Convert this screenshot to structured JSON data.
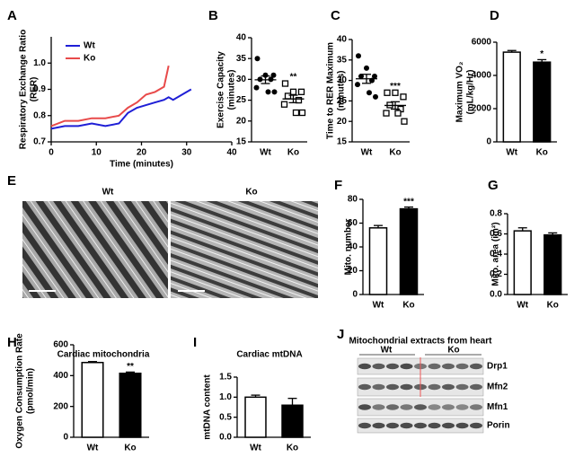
{
  "chart_data": [
    {
      "type": "line",
      "panel": "A",
      "ylabel": [
        "Respiratory Exchange Ratio",
        "(RER)"
      ],
      "xlabel": "Time (minutes)",
      "x": [
        0,
        3,
        6,
        9,
        12,
        15,
        17,
        19,
        21,
        23,
        25,
        26,
        27,
        29,
        31
      ],
      "series": [
        {
          "name": "Wt",
          "color": "#1f1fd6",
          "values": [
            0.75,
            0.76,
            0.76,
            0.77,
            0.76,
            0.77,
            0.81,
            0.83,
            0.84,
            0.85,
            0.86,
            0.87,
            0.86,
            0.88,
            0.9
          ]
        },
        {
          "name": "Ko",
          "color": "#e84a4a",
          "values": [
            0.76,
            0.78,
            0.78,
            0.79,
            0.79,
            0.8,
            0.83,
            0.85,
            0.88,
            0.89,
            0.91,
            0.99,
            null,
            null,
            null
          ]
        }
      ],
      "xlim": [
        0,
        40
      ],
      "xticks": [
        0,
        10,
        20,
        30,
        40
      ],
      "ylim": [
        0.7,
        1.1
      ],
      "yticks": [
        0.7,
        0.8,
        0.9,
        {
          "value": 1,
          "label": "1.0"
        }
      ],
      "legend": "top-left"
    },
    {
      "type": "dot",
      "panel": "B",
      "ylabel": [
        "Exercise Capacity",
        "(minutes)"
      ],
      "categories": [
        "Wt",
        "Ko"
      ],
      "values": [
        [
          35,
          31,
          31,
          30,
          30,
          28,
          27,
          27
        ],
        [
          29,
          27,
          27,
          26,
          25,
          24,
          22,
          22
        ]
      ],
      "means": [
        29.9,
        25.3
      ],
      "errors": [
        0.9,
        0.9
      ],
      "markers": [
        "circle",
        "square"
      ],
      "annotation": "**",
      "ylim": [
        15,
        40
      ],
      "yticks": [
        15,
        20,
        25,
        30,
        35,
        40
      ]
    },
    {
      "type": "dot",
      "panel": "C",
      "ylabel": [
        "Time to RER Maximum",
        "(minutes)"
      ],
      "categories": [
        "Wt",
        "Ko"
      ],
      "values": [
        [
          36,
          33,
          31,
          31,
          30,
          29,
          27,
          26
        ],
        [
          27,
          27,
          26,
          24,
          23,
          22,
          22,
          20
        ]
      ],
      "means": [
        30.4,
        23.9
      ],
      "errors": [
        1.1,
        0.9
      ],
      "markers": [
        "circle",
        "square"
      ],
      "annotation": "***",
      "ylim": [
        15,
        40
      ],
      "yticks": [
        15,
        20,
        25,
        30,
        35,
        40
      ]
    },
    {
      "type": "bar",
      "panel": "D",
      "ylabel": [
        "Maximum VO₂",
        "(mL/kg/Hr)"
      ],
      "categories": [
        "Wt",
        "Ko"
      ],
      "values": [
        5400,
        4800
      ],
      "errors": [
        100,
        150
      ],
      "colors": [
        "#ffffff",
        "#000000"
      ],
      "annotation": "*",
      "ylim": [
        0,
        6000
      ],
      "yticks": [
        0,
        2000,
        4000,
        6000
      ]
    },
    {
      "type": "bar",
      "panel": "F",
      "ylabel": [
        "Mito. number"
      ],
      "categories": [
        "Wt",
        "Ko"
      ],
      "values": [
        56,
        72
      ],
      "errors": [
        2,
        1.5
      ],
      "colors": [
        "#ffffff",
        "#000000"
      ],
      "annotation": "***",
      "ylim": [
        0,
        80
      ],
      "yticks": [
        0,
        20,
        40,
        60,
        80
      ]
    },
    {
      "type": "bar",
      "panel": "G",
      "ylabel": [
        "Mito. area (im²)"
      ],
      "categories": [
        "Wt",
        "Ko"
      ],
      "values": [
        0.63,
        0.59
      ],
      "errors": [
        0.03,
        0.02
      ],
      "colors": [
        "#ffffff",
        "#000000"
      ],
      "ylim": [
        0,
        0.8
      ],
      "yticks": [
        {
          "value": 0,
          "label": "0.0"
        },
        0.2,
        0.4,
        0.6,
        0.8
      ]
    },
    {
      "type": "bar",
      "panel": "H",
      "title": "Cardiac mitochondria",
      "ylabel": [
        "Oxygen Consumption Rate",
        "(pmol/min)"
      ],
      "categories": [
        "Wt",
        "Ko"
      ],
      "values": [
        485,
        415
      ],
      "errors": [
        6,
        8
      ],
      "colors": [
        "#ffffff",
        "#000000"
      ],
      "annotation": "**",
      "ylim": [
        0,
        600
      ],
      "yticks": [
        0,
        200,
        400,
        600
      ]
    },
    {
      "type": "bar",
      "panel": "I",
      "title": "Cardiac mtDNA",
      "ylabel": [
        "mtDNA content"
      ],
      "categories": [
        "Wt",
        "Ko"
      ],
      "values": [
        1.0,
        0.8
      ],
      "errors": [
        0.05,
        0.17
      ],
      "colors": [
        "#ffffff",
        "#000000"
      ],
      "ylim": [
        0,
        1.5
      ],
      "yticks": [
        {
          "value": 0,
          "label": "0.0"
        },
        0.5,
        {
          "value": 1,
          "label": "1.0"
        },
        1.5
      ]
    }
  ],
  "micrograph": {
    "panel": "E",
    "labels": [
      "Wt",
      "Ko"
    ]
  },
  "blot": {
    "panel": "J",
    "title": "Mitochondrial extracts from heart",
    "groups": [
      "Wt",
      "Ko"
    ],
    "bands": [
      "Drp1",
      "Mfn2",
      "Mfn1",
      "Porin"
    ]
  }
}
